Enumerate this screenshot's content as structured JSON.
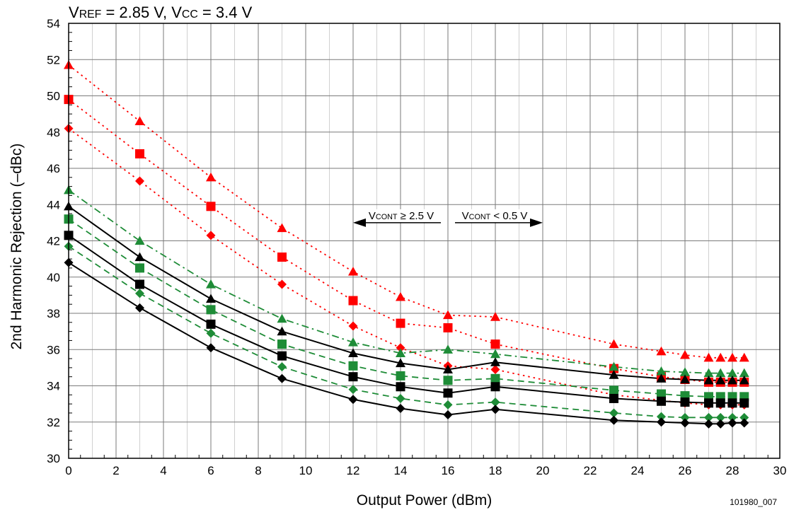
{
  "chart_data": {
    "type": "line",
    "title": {
      "parts": [
        {
          "text": "V",
          "small": false
        },
        {
          "text": "REF",
          "small": true
        },
        {
          "text": " = 2.85 V, V",
          "small": false
        },
        {
          "text": "CC",
          "small": true
        },
        {
          "text": " = 3.4 V",
          "small": false
        }
      ]
    },
    "xlabel": "Output Power (dBm)",
    "ylabel": "2nd Harmonic Rejection (–dBc)",
    "xlim": [
      0,
      30
    ],
    "ylim": [
      30,
      54
    ],
    "xticks": [
      0,
      2,
      4,
      6,
      8,
      10,
      12,
      14,
      16,
      18,
      20,
      22,
      24,
      26,
      28,
      30
    ],
    "yticks": [
      30,
      32,
      34,
      36,
      38,
      40,
      42,
      44,
      46,
      48,
      50,
      52,
      54
    ],
    "grid": true,
    "minor_grid_x": 1,
    "footnote": "101980_007",
    "annotations": {
      "left": {
        "parts": [
          {
            "text": "V",
            "small": false
          },
          {
            "text": "CONT",
            "small": true
          },
          {
            "text": " ≥ 2.5 V",
            "small": false
          }
        ],
        "x_from": 12,
        "x_to": 16,
        "y": 43
      },
      "right": {
        "parts": [
          {
            "text": "V",
            "small": false
          },
          {
            "text": "CONT",
            "small": true
          },
          {
            "text": " < 0.5 V",
            "small": false
          }
        ],
        "x_from": 16,
        "x_to": 20,
        "y": 43
      }
    },
    "series": [
      {
        "color": "#ff0000",
        "marker": "triangle",
        "dash": "dot",
        "x": [
          0,
          3,
          6,
          9,
          12,
          14,
          16,
          18,
          23,
          25,
          26,
          27,
          27.5,
          28,
          28.5
        ],
        "y": [
          51.7,
          48.6,
          45.5,
          42.7,
          40.3,
          38.9,
          37.9,
          37.8,
          36.3,
          35.9,
          35.7,
          35.55,
          35.55,
          35.55,
          35.55
        ]
      },
      {
        "color": "#ff0000",
        "marker": "square",
        "dash": "dot",
        "x": [
          0,
          3,
          6,
          9,
          12,
          14,
          16,
          18,
          23,
          25,
          26,
          27,
          27.5,
          28,
          28.5
        ],
        "y": [
          49.8,
          46.8,
          43.9,
          41.1,
          38.7,
          37.45,
          37.2,
          36.3,
          34.95,
          34.5,
          34.35,
          34.2,
          34.2,
          34.2,
          34.2
        ]
      },
      {
        "color": "#ff0000",
        "marker": "diamond",
        "dash": "dot",
        "x": [
          0,
          3,
          6,
          9,
          12,
          14,
          16,
          18,
          23,
          25,
          26,
          27,
          27.5,
          28,
          28.5
        ],
        "y": [
          48.2,
          45.3,
          42.3,
          39.6,
          37.3,
          36.1,
          35.1,
          34.9,
          33.5,
          33.2,
          33.05,
          32.95,
          32.95,
          32.95,
          32.95
        ]
      },
      {
        "color": "#1e8c37",
        "marker": "triangle",
        "dash": "dashdot",
        "x": [
          0,
          3,
          6,
          9,
          12,
          14,
          16,
          18,
          23,
          25,
          26,
          27,
          27.5,
          28,
          28.5
        ],
        "y": [
          44.8,
          42.0,
          39.6,
          37.7,
          36.4,
          35.8,
          36.0,
          35.75,
          35.05,
          34.8,
          34.75,
          34.7,
          34.7,
          34.7,
          34.7
        ]
      },
      {
        "color": "#000000",
        "marker": "triangle",
        "dash": "solid",
        "x": [
          0,
          3,
          6,
          9,
          12,
          14,
          16,
          18,
          23,
          25,
          26,
          27,
          27.5,
          28,
          28.5
        ],
        "y": [
          43.9,
          41.1,
          38.8,
          37.0,
          35.8,
          35.25,
          34.9,
          35.3,
          34.6,
          34.4,
          34.35,
          34.3,
          34.3,
          34.3,
          34.3
        ]
      },
      {
        "color": "#1e8c37",
        "marker": "square",
        "dash": "dash",
        "x": [
          0,
          3,
          6,
          9,
          12,
          14,
          16,
          18,
          23,
          25,
          26,
          27,
          27.5,
          28,
          28.5
        ],
        "y": [
          43.2,
          40.5,
          38.2,
          36.3,
          35.1,
          34.55,
          34.3,
          34.4,
          33.75,
          33.55,
          33.45,
          33.4,
          33.4,
          33.4,
          33.4
        ]
      },
      {
        "color": "#000000",
        "marker": "square",
        "dash": "solid",
        "x": [
          0,
          3,
          6,
          9,
          12,
          14,
          16,
          18,
          23,
          25,
          26,
          27,
          27.5,
          28,
          28.5
        ],
        "y": [
          42.3,
          39.6,
          37.4,
          35.65,
          34.5,
          33.95,
          33.6,
          33.95,
          33.3,
          33.15,
          33.1,
          33.05,
          33.05,
          33.05,
          33.05
        ]
      },
      {
        "color": "#1e8c37",
        "marker": "diamond",
        "dash": "dash",
        "x": [
          0,
          3,
          6,
          9,
          12,
          14,
          16,
          18,
          23,
          25,
          26,
          27,
          27.5,
          28,
          28.5
        ],
        "y": [
          41.7,
          39.1,
          36.9,
          35.05,
          33.8,
          33.3,
          32.95,
          33.1,
          32.5,
          32.3,
          32.25,
          32.25,
          32.25,
          32.25,
          32.25
        ]
      },
      {
        "color": "#000000",
        "marker": "diamond",
        "dash": "solid",
        "x": [
          0,
          3,
          6,
          9,
          12,
          14,
          16,
          18,
          23,
          25,
          26,
          27,
          27.5,
          28,
          28.5
        ],
        "y": [
          40.8,
          38.3,
          36.1,
          34.4,
          33.25,
          32.75,
          32.4,
          32.7,
          32.1,
          32.0,
          31.95,
          31.9,
          31.9,
          31.95,
          31.95
        ]
      }
    ]
  }
}
